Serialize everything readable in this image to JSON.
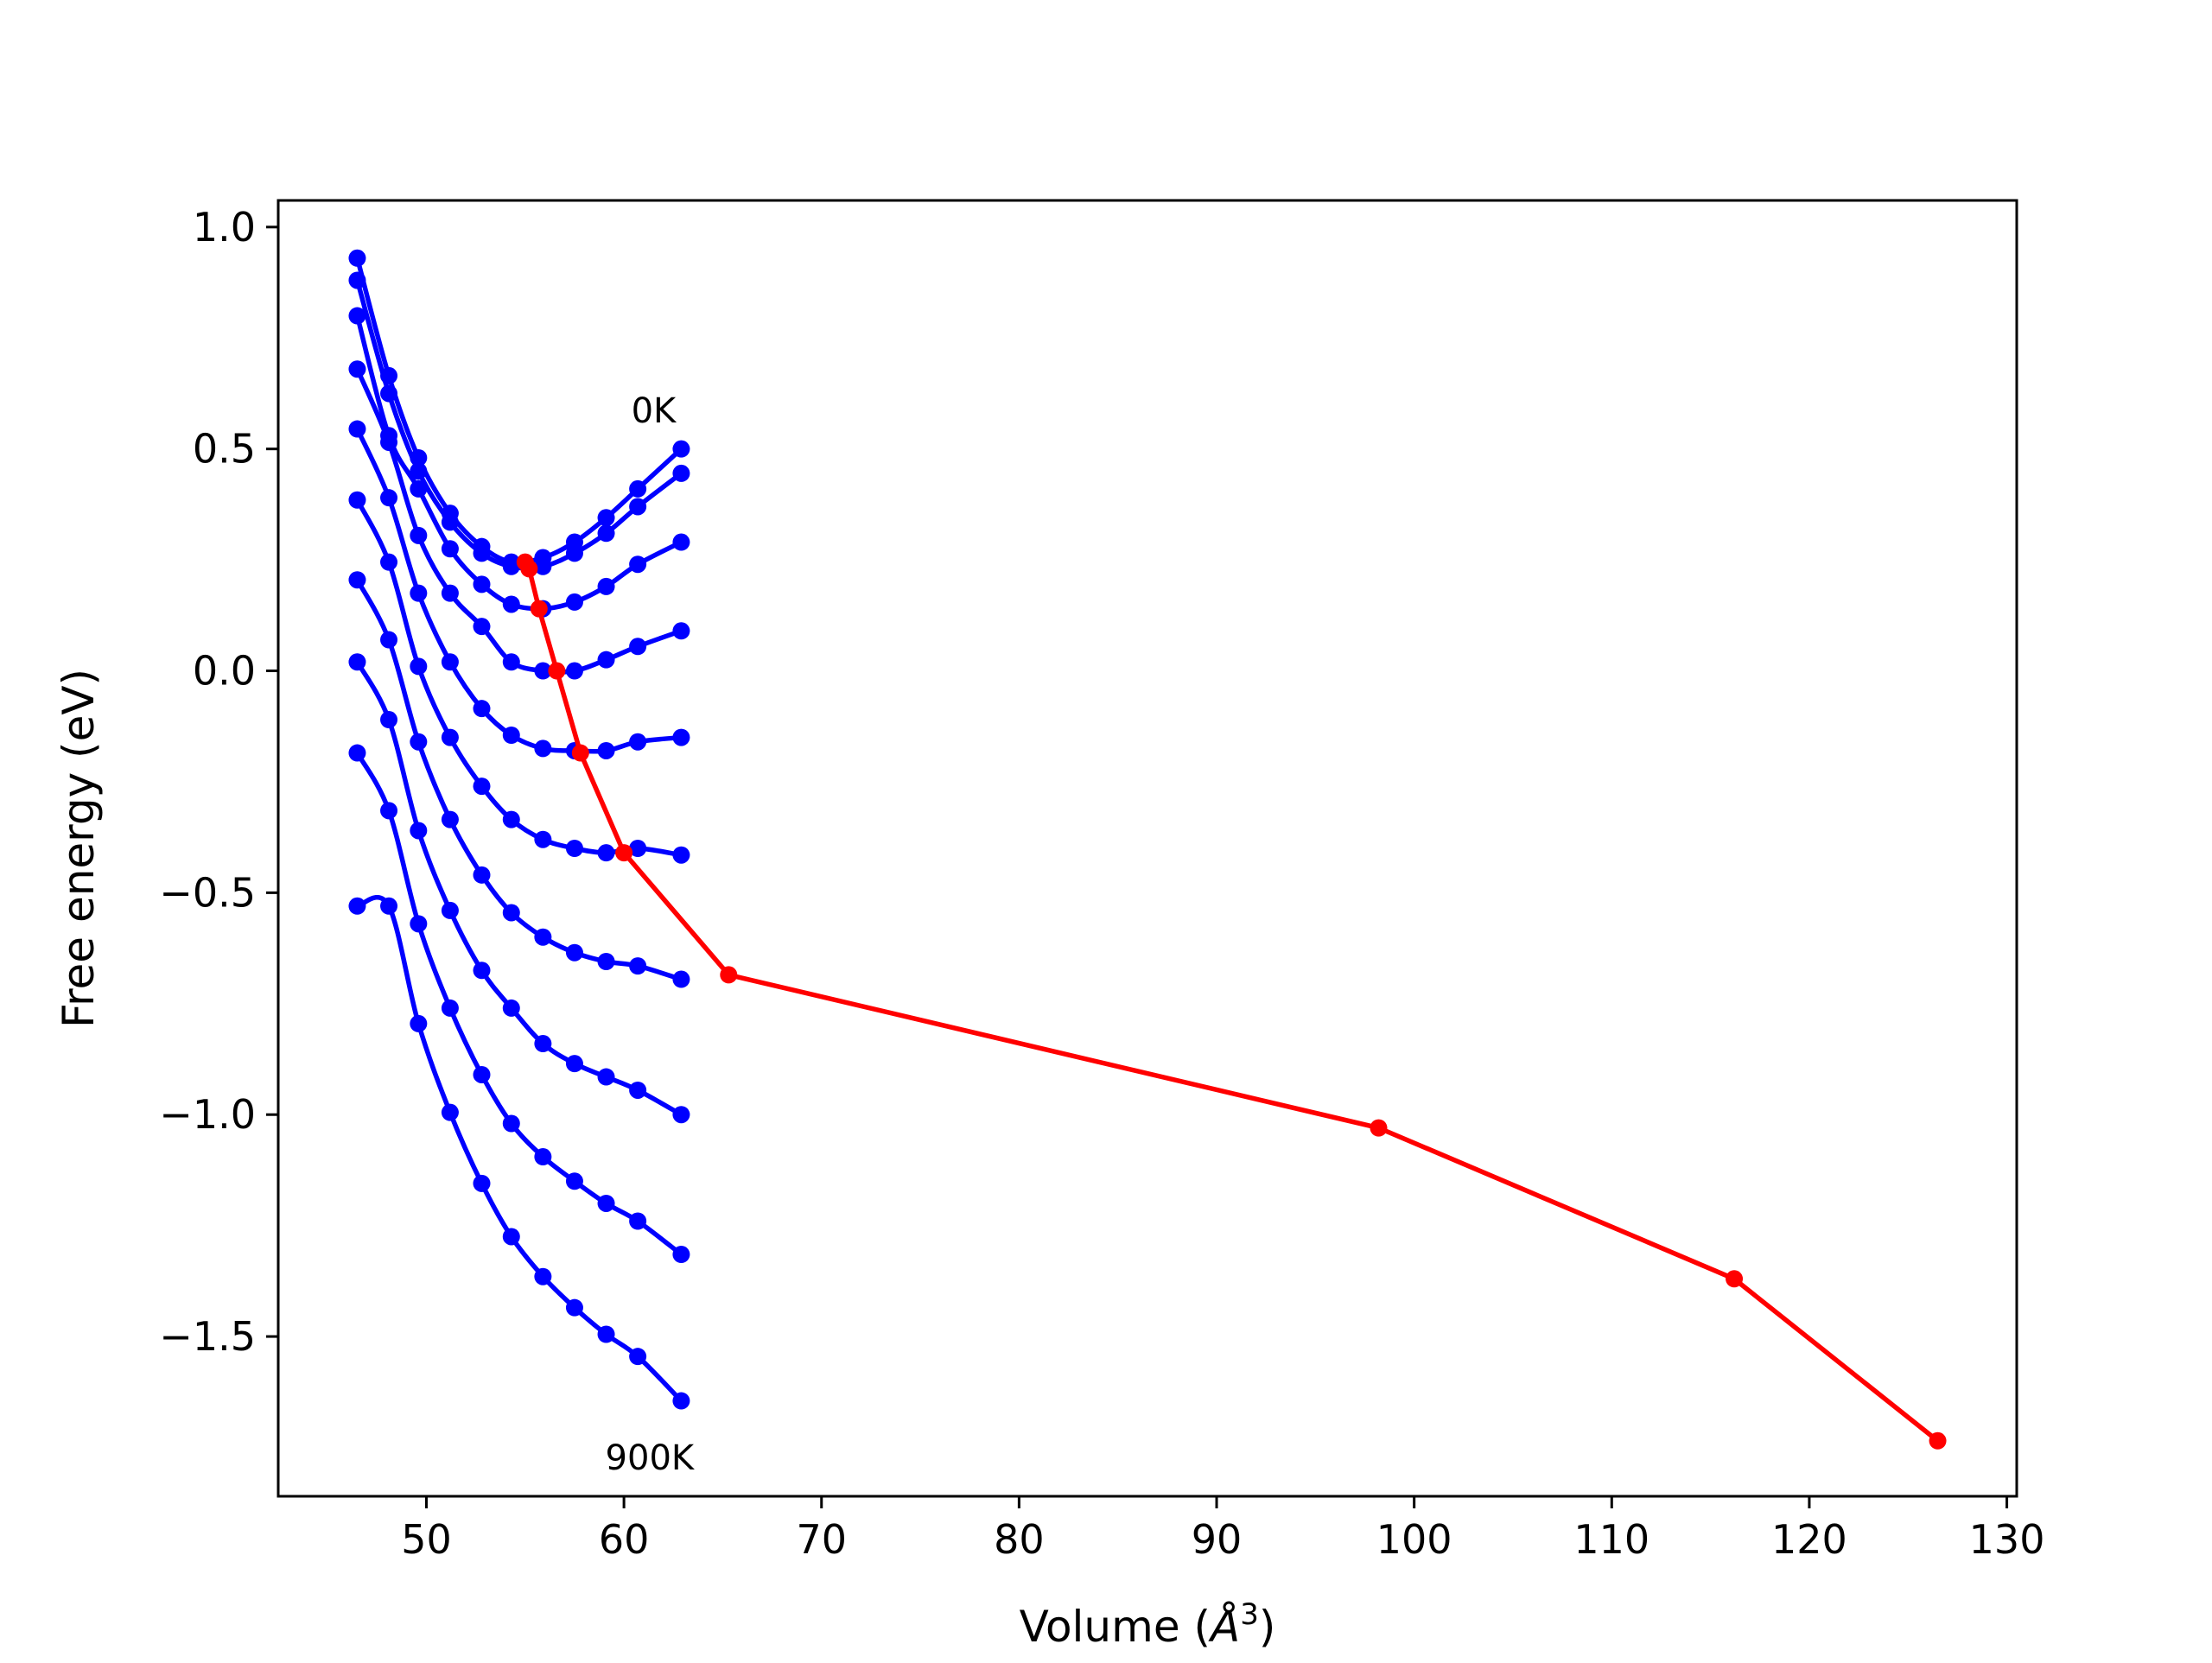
{
  "chart_data": {
    "type": "line",
    "title": "",
    "xlabel_prefix": "Volume (",
    "xlabel_unit": "Å",
    "xlabel_exp": "3",
    "xlabel_suffix": ")",
    "ylabel": "Free energy (eV)",
    "xlim": [
      42.5,
      130.5
    ],
    "ylim": [
      -1.86,
      1.06
    ],
    "xticks": [
      50,
      60,
      70,
      80,
      90,
      100,
      110,
      120,
      130
    ],
    "xtick_labels": [
      "50",
      "60",
      "70",
      "80",
      "90",
      "100",
      "110",
      "120",
      "130"
    ],
    "yticks": [
      1.0,
      0.5,
      0.0,
      -0.5,
      -1.0,
      -1.5
    ],
    "ytick_labels": [
      "1.0",
      "0.5",
      "0.0",
      "−0.5",
      "−1.0",
      "−1.5"
    ],
    "grid": false,
    "colors": {
      "isotherm": "#0000ff",
      "minimum": "#ff0000"
    },
    "annotations": [
      {
        "text": "0K",
        "x": 61.5,
        "y": 0.56
      },
      {
        "text": "900K",
        "x": 61.3,
        "y": -1.8
      }
    ],
    "volumes": [
      46.5,
      48.1,
      49.6,
      51.2,
      52.8,
      54.3,
      55.9,
      57.5,
      59.1,
      60.7,
      62.9
    ],
    "series": [
      {
        "values": [
          0.93,
          0.665,
          0.48,
          0.355,
          0.28,
          0.245,
          0.255,
          0.29,
          0.345,
          0.41,
          0.5
        ]
      },
      {
        "values": [
          0.88,
          0.625,
          0.45,
          0.335,
          0.265,
          0.235,
          0.235,
          0.265,
          0.31,
          0.37,
          0.445
        ]
      },
      {
        "values": [
          0.8,
          0.53,
          0.41,
          0.275,
          0.195,
          0.15,
          0.14,
          0.155,
          0.19,
          0.24,
          0.29
        ]
      },
      {
        "values": [
          0.68,
          0.515,
          0.305,
          0.175,
          0.1,
          0.02,
          0.0,
          0.0,
          0.025,
          0.055,
          0.09
        ]
      },
      {
        "values": [
          0.545,
          0.39,
          0.175,
          0.02,
          -0.085,
          -0.145,
          -0.175,
          -0.18,
          -0.18,
          -0.16,
          -0.15
        ]
      },
      {
        "values": [
          0.385,
          0.245,
          0.01,
          -0.15,
          -0.26,
          -0.335,
          -0.38,
          -0.4,
          -0.41,
          -0.4,
          -0.415
        ]
      },
      {
        "values": [
          0.205,
          0.07,
          -0.16,
          -0.335,
          -0.46,
          -0.545,
          -0.6,
          -0.635,
          -0.655,
          -0.665,
          -0.695
        ]
      },
      {
        "values": [
          0.02,
          -0.11,
          -0.36,
          -0.54,
          -0.675,
          -0.76,
          -0.84,
          -0.885,
          -0.915,
          -0.945,
          -1.0
        ]
      },
      {
        "values": [
          -0.185,
          -0.315,
          -0.57,
          -0.76,
          -0.91,
          -1.02,
          -1.095,
          -1.15,
          -1.2,
          -1.24,
          -1.315
        ]
      },
      {
        "values": [
          -0.53,
          -0.53,
          -0.795,
          -0.995,
          -1.155,
          -1.275,
          -1.365,
          -1.435,
          -1.495,
          -1.545,
          -1.645
        ]
      }
    ],
    "minimum_line": {
      "x": [
        55.0,
        55.2,
        55.7,
        56.6,
        57.8,
        60.0,
        65.3,
        98.2,
        116.2,
        126.5
      ],
      "y": [
        0.245,
        0.23,
        0.14,
        0.0,
        -0.185,
        -0.41,
        -0.685,
        -1.03,
        -1.37,
        -1.735
      ]
    }
  }
}
